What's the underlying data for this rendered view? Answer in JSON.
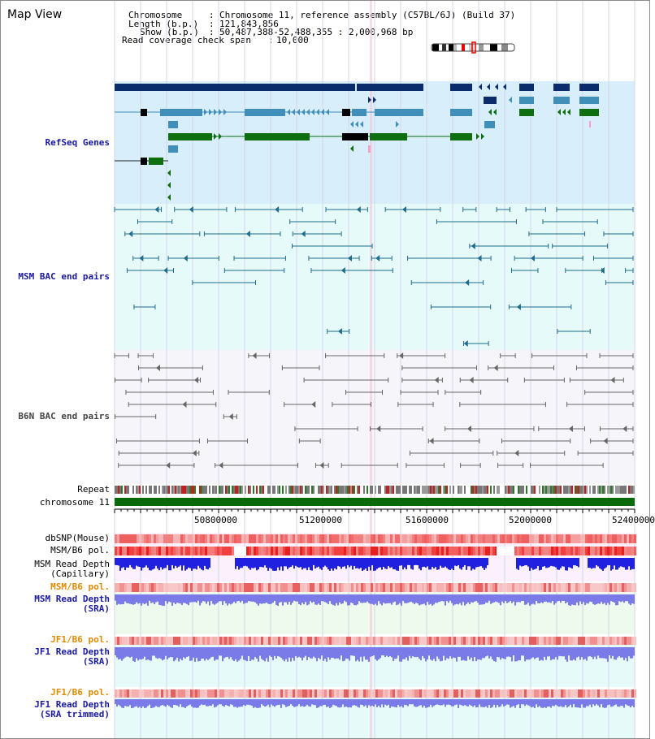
{
  "page": {
    "title": "Map View"
  },
  "header": {
    "chromosome_label": "Chromosome",
    "chromosome_value": "Chromosome 11, reference assembly (C57BL/6J) (Build 37)",
    "length_label": "Length (b.p.)",
    "length_value": "121,843,856",
    "show_label": "Show (b.p.)",
    "show_value": "50,487,388-52,488,355 : 2,000,968 bp",
    "coverage_label": "Read coverage check span",
    "coverage_value": "10,000",
    "separator": ":"
  },
  "tracks": {
    "refseq": "RefSeq Genes",
    "msm_bac": "MSM BAC end pairs",
    "b6n_bac": "B6N BAC end pairs",
    "repeat": "Repeat",
    "chromosome": "chromosome 11",
    "dbsnp": "dbSNP(Mouse)",
    "msm_b6_pol_1": "MSM/B6 pol.",
    "msm_depth_cap_1": "MSM Read Depth",
    "msm_depth_cap_2": "(Capillary)",
    "msm_b6_pol_2": "MSM/B6 pol.",
    "msm_depth_sra_1": "MSM Read Depth",
    "msm_depth_sra_2": "(SRA)",
    "jf1_b6_pol_1": "JF1/B6 pol.",
    "jf1_depth_sra_1": "JF1 Read Depth",
    "jf1_depth_sra_2": "(SRA)",
    "jf1_b6_pol_2": "JF1/B6 pol.",
    "jf1_depth_trim_1": "JF1 Read Depth",
    "jf1_depth_trim_2": "(SRA trimmed)"
  },
  "axis": {
    "ticks": [
      "50800000",
      "51200000",
      "51600000",
      "52000000",
      "52400000"
    ]
  },
  "colors": {
    "refseq_bg": "#d8eefa",
    "msm_bg": "#e6fafa",
    "b6n_bg": "#f6f6fa",
    "gene_navy": "#0b2c6b",
    "gene_teal": "#3f8fb8",
    "gene_green": "#0f6e10",
    "bac_msm": "#1f6c8c",
    "bac_b6n": "#666666",
    "chromosome_bar": "#0a6a0a",
    "depth_blue": "#2020e0",
    "depth_lightblue": "#7a7ae8"
  }
}
